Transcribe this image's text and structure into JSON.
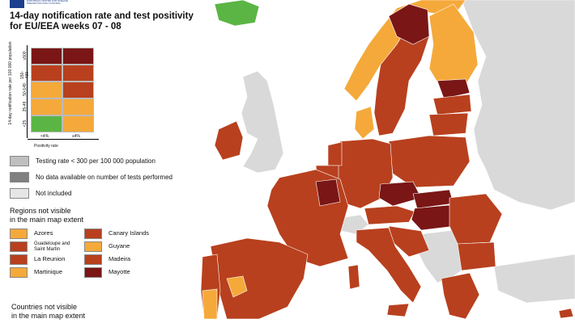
{
  "title_line1": "14-day notification rate and test positivity",
  "title_line2": "for EU/EEA weeks 07 - 08",
  "matrix": {
    "y_axis_label": "14-day notification rate per 100 000 population",
    "y_ticks": [
      "<25",
      "25-49",
      "50-149",
      "150-499",
      "≥500"
    ],
    "x_ticks": [
      "<4%",
      "≥4%"
    ],
    "x_axis_label": "Positivity rate",
    "colors": [
      [
        "#7a1616",
        "#7a1616"
      ],
      [
        "#b8401e",
        "#b8401e"
      ],
      [
        "#f5a93a",
        "#b8401e"
      ],
      [
        "#f5a93a",
        "#f5a93a"
      ],
      [
        "#5bb544",
        "#f5a93a"
      ]
    ]
  },
  "legend": [
    {
      "label": "Testing rate < 300 per 100 000 population",
      "color": "#bfbfbf"
    },
    {
      "label": "No data available on number of tests performed",
      "color": "#808080"
    },
    {
      "label": "Not included",
      "color": "#e6e6e6"
    }
  ],
  "regions_title_line1": "Regions not visible",
  "regions_title_line2": "in the main map extent",
  "regions": [
    {
      "label": "Azores",
      "color": "#f5a93a"
    },
    {
      "label": "Canary Islands",
      "color": "#b8401e"
    },
    {
      "label": "Guadeloupe and Saint Martin",
      "color": "#b8401e"
    },
    {
      "label": "Guyane",
      "color": "#f5a93a"
    },
    {
      "label": "La Reunion",
      "color": "#b8401e"
    },
    {
      "label": "Madeira",
      "color": "#b8401e"
    },
    {
      "label": "Martinique",
      "color": "#f5a93a"
    },
    {
      "label": "Mayotte",
      "color": "#7a1616"
    }
  ],
  "countries_title_line1": "Countries not visible",
  "countries_title_line2": "in the main map extent",
  "map_colors": {
    "sea": "#ffffff",
    "non_eu": "#d9d9d9",
    "dark_red": "#7a1616",
    "red": "#b8401e",
    "orange": "#f5a93a",
    "green": "#5bb544"
  }
}
